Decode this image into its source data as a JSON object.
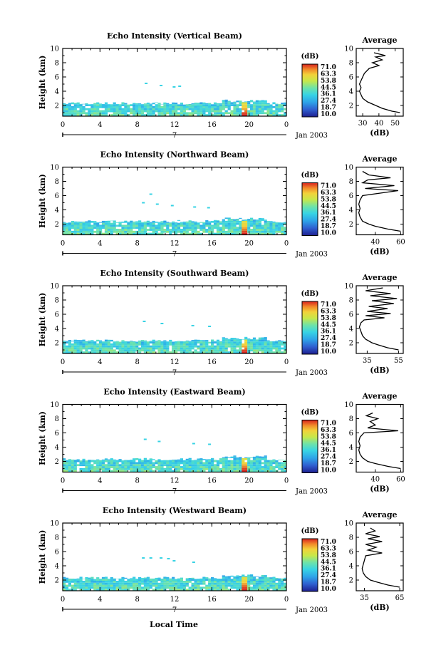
{
  "xlabel": "Local Time",
  "chart_data": [
    {
      "type": "heatmap",
      "title": "Echo Intensity (Vertical Beam)",
      "ylabel": "Height (km)",
      "x_ticks": [
        "0",
        "4",
        "8",
        "12",
        "16",
        "20",
        "0"
      ],
      "y_ticks": [
        "2",
        "4",
        "6",
        "8",
        "10"
      ],
      "xlim": [
        0,
        24
      ],
      "ylim": [
        0.5,
        10
      ],
      "date_marker": "7",
      "date_label": "Jan 2003",
      "colorbar": {
        "unit": "(dB)",
        "ticks": [
          "71.0",
          "63.3",
          "53.8",
          "44.5",
          "36.1",
          "27.4",
          "18.7",
          "10.0"
        ]
      },
      "layer": {
        "top_km": 2.3,
        "intensity_db": 40,
        "peak_hour": 19.5,
        "peak_db": 71
      },
      "scattered_echoes": [
        [
          8.8,
          5.1
        ],
        [
          10.4,
          4.8
        ],
        [
          11.8,
          4.6
        ],
        [
          12.4,
          4.7
        ]
      ],
      "profile": {
        "title": "Average",
        "xlabel": "(dB)",
        "x_ticks": [
          "30",
          "40",
          "50"
        ],
        "xlim": [
          26,
          55
        ],
        "y_ticks": [
          "2",
          "4",
          "6",
          "8",
          "10"
        ],
        "points": [
          [
            53,
            1.0
          ],
          [
            48,
            1.2
          ],
          [
            42,
            1.6
          ],
          [
            38,
            2.0
          ],
          [
            33,
            2.5
          ],
          [
            30,
            3.0
          ],
          [
            29,
            3.5
          ],
          [
            28,
            4.0
          ],
          [
            29,
            4.5
          ],
          [
            28,
            5.0
          ],
          [
            29,
            5.5
          ],
          [
            30,
            6.0
          ],
          [
            31,
            6.5
          ],
          [
            34,
            7.2
          ],
          [
            40,
            7.6
          ],
          [
            36,
            8.0
          ],
          [
            42,
            8.4
          ],
          [
            38,
            8.8
          ],
          [
            44,
            9.0
          ],
          [
            37,
            9.4
          ]
        ]
      }
    },
    {
      "type": "heatmap",
      "title": "Echo Intensity (Northward Beam)",
      "ylabel": "Height (km)",
      "x_ticks": [
        "0",
        "4",
        "8",
        "12",
        "16",
        "20",
        "0"
      ],
      "y_ticks": [
        "2",
        "4",
        "6",
        "8",
        "10"
      ],
      "xlim": [
        0,
        24
      ],
      "ylim": [
        0.5,
        10
      ],
      "date_marker": "7",
      "date_label": "Jan 2003",
      "colorbar": {
        "unit": "(dB)",
        "ticks": [
          "71.0",
          "63.3",
          "53.8",
          "44.5",
          "36.1",
          "27.4",
          "18.7",
          "10.0"
        ]
      },
      "layer": {
        "top_km": 2.4,
        "intensity_db": 40,
        "peak_hour": 19.5,
        "peak_db": 71
      },
      "scattered_echoes": [
        [
          9.3,
          6.2
        ],
        [
          8.5,
          5.0
        ],
        [
          10.0,
          4.8
        ],
        [
          11.6,
          4.6
        ],
        [
          14.0,
          4.4
        ],
        [
          15.5,
          4.3
        ]
      ],
      "profile": {
        "title": "Average",
        "xlabel": "(dB)",
        "x_ticks": [
          "40",
          "60"
        ],
        "xlim": [
          25,
          62
        ],
        "y_ticks": [
          "2",
          "4",
          "6",
          "8",
          "10"
        ],
        "points": [
          [
            60,
            1.0
          ],
          [
            50,
            1.3
          ],
          [
            40,
            1.7
          ],
          [
            35,
            2.0
          ],
          [
            30,
            2.4
          ],
          [
            28,
            3.0
          ],
          [
            27,
            3.6
          ],
          [
            28,
            4.2
          ],
          [
            27,
            4.8
          ],
          [
            28,
            5.4
          ],
          [
            30,
            6.0
          ],
          [
            58,
            6.7
          ],
          [
            32,
            7.0
          ],
          [
            55,
            7.4
          ],
          [
            30,
            7.8
          ],
          [
            34,
            8.2
          ],
          [
            52,
            8.5
          ],
          [
            35,
            8.9
          ],
          [
            30,
            9.4
          ]
        ]
      }
    },
    {
      "type": "heatmap",
      "title": "Echo Intensity (Southward Beam)",
      "ylabel": "Height (km)",
      "x_ticks": [
        "0",
        "4",
        "8",
        "12",
        "16",
        "20",
        "0"
      ],
      "y_ticks": [
        "2",
        "4",
        "6",
        "8",
        "10"
      ],
      "xlim": [
        0,
        24
      ],
      "ylim": [
        0.5,
        10
      ],
      "date_marker": "7",
      "date_label": "Jan 2003",
      "colorbar": {
        "unit": "(dB)",
        "ticks": [
          "71.0",
          "63.3",
          "53.8",
          "44.5",
          "36.1",
          "27.4",
          "18.7",
          "10.0"
        ]
      },
      "layer": {
        "top_km": 2.3,
        "intensity_db": 40,
        "peak_hour": 19.5,
        "peak_db": 71
      },
      "scattered_echoes": [
        [
          8.6,
          5.0
        ],
        [
          10.5,
          4.7
        ],
        [
          13.8,
          4.4
        ],
        [
          15.6,
          4.3
        ]
      ],
      "profile": {
        "title": "Average",
        "xlabel": "(dB)",
        "x_ticks": [
          "35",
          "55"
        ],
        "xlim": [
          28,
          58
        ],
        "y_ticks": [
          "2",
          "4",
          "6",
          "8",
          "10"
        ],
        "points": [
          [
            55,
            1.0
          ],
          [
            48,
            1.3
          ],
          [
            42,
            1.7
          ],
          [
            38,
            2.0
          ],
          [
            34,
            2.5
          ],
          [
            32,
            3.0
          ],
          [
            31,
            3.6
          ],
          [
            30,
            4.2
          ],
          [
            31,
            4.8
          ],
          [
            33,
            5.2
          ],
          [
            46,
            5.5
          ],
          [
            34,
            5.8
          ],
          [
            50,
            6.1
          ],
          [
            35,
            6.4
          ],
          [
            48,
            6.8
          ],
          [
            36,
            7.1
          ],
          [
            52,
            7.5
          ],
          [
            38,
            7.9
          ],
          [
            54,
            8.2
          ],
          [
            37,
            8.6
          ],
          [
            50,
            8.9
          ],
          [
            34,
            9.3
          ],
          [
            45,
            9.7
          ]
        ]
      }
    },
    {
      "type": "heatmap",
      "title": "Echo Intensity (Eastward Beam)",
      "ylabel": "Height (km)",
      "x_ticks": [
        "0",
        "4",
        "8",
        "12",
        "16",
        "20",
        "0"
      ],
      "y_ticks": [
        "2",
        "4",
        "6",
        "8",
        "10"
      ],
      "xlim": [
        0,
        24
      ],
      "ylim": [
        0.5,
        10
      ],
      "date_marker": "7",
      "date_label": "Jan 2003",
      "colorbar": {
        "unit": "(dB)",
        "ticks": [
          "71.0",
          "63.3",
          "53.8",
          "44.5",
          "36.1",
          "27.4",
          "18.7",
          "10.0"
        ]
      },
      "layer": {
        "top_km": 2.3,
        "intensity_db": 40,
        "peak_hour": 19.5,
        "peak_db": 71
      },
      "scattered_echoes": [
        [
          8.7,
          5.1
        ],
        [
          10.2,
          4.8
        ],
        [
          13.9,
          4.5
        ],
        [
          15.6,
          4.4
        ]
      ],
      "profile": {
        "title": "Average",
        "xlabel": "(dB)",
        "x_ticks": [
          "40",
          "60"
        ],
        "xlim": [
          25,
          62
        ],
        "y_ticks": [
          "2",
          "4",
          "6",
          "8",
          "10"
        ],
        "points": [
          [
            60,
            1.0
          ],
          [
            50,
            1.3
          ],
          [
            40,
            1.7
          ],
          [
            34,
            2.0
          ],
          [
            30,
            2.5
          ],
          [
            28,
            3.0
          ],
          [
            27,
            3.6
          ],
          [
            28,
            4.2
          ],
          [
            27,
            4.8
          ],
          [
            28,
            5.4
          ],
          [
            31,
            6.0
          ],
          [
            58,
            6.3
          ],
          [
            34,
            6.7
          ],
          [
            40,
            7.1
          ],
          [
            36,
            7.6
          ],
          [
            42,
            8.0
          ],
          [
            33,
            8.4
          ],
          [
            38,
            8.8
          ]
        ]
      }
    },
    {
      "type": "heatmap",
      "title": "Echo Intensity (Westward Beam)",
      "ylabel": "Height (km)",
      "x_ticks": [
        "0",
        "4",
        "8",
        "12",
        "16",
        "20",
        "0"
      ],
      "y_ticks": [
        "2",
        "4",
        "6",
        "8",
        "10"
      ],
      "xlim": [
        0,
        24
      ],
      "ylim": [
        0.5,
        10
      ],
      "date_marker": "7",
      "date_label": "Jan 2003",
      "colorbar": {
        "unit": "(dB)",
        "ticks": [
          "71.0",
          "63.3",
          "53.8",
          "44.5",
          "36.1",
          "27.4",
          "18.7",
          "10.0"
        ]
      },
      "layer": {
        "top_km": 2.3,
        "intensity_db": 40,
        "peak_hour": 19.5,
        "peak_db": 71
      },
      "scattered_echoes": [
        [
          8.5,
          5.1
        ],
        [
          9.3,
          5.1
        ],
        [
          10.4,
          5.1
        ],
        [
          11.2,
          5.0
        ],
        [
          11.8,
          4.7
        ],
        [
          13.9,
          4.5
        ]
      ],
      "profile": {
        "title": "Average",
        "xlabel": "(dB)",
        "x_ticks": [
          "35",
          "65"
        ],
        "xlim": [
          28,
          68
        ],
        "y_ticks": [
          "2",
          "4",
          "6",
          "8",
          "10"
        ],
        "points": [
          [
            65,
            1.0
          ],
          [
            55,
            1.3
          ],
          [
            46,
            1.7
          ],
          [
            40,
            2.0
          ],
          [
            36,
            2.5
          ],
          [
            34,
            3.0
          ],
          [
            33,
            3.6
          ],
          [
            34,
            4.2
          ],
          [
            35,
            4.8
          ],
          [
            36,
            5.4
          ],
          [
            50,
            5.8
          ],
          [
            38,
            6.2
          ],
          [
            45,
            6.6
          ],
          [
            36,
            7.0
          ],
          [
            50,
            7.4
          ],
          [
            38,
            7.8
          ],
          [
            48,
            8.1
          ],
          [
            36,
            8.5
          ],
          [
            44,
            8.9
          ],
          [
            40,
            9.3
          ]
        ]
      }
    }
  ]
}
